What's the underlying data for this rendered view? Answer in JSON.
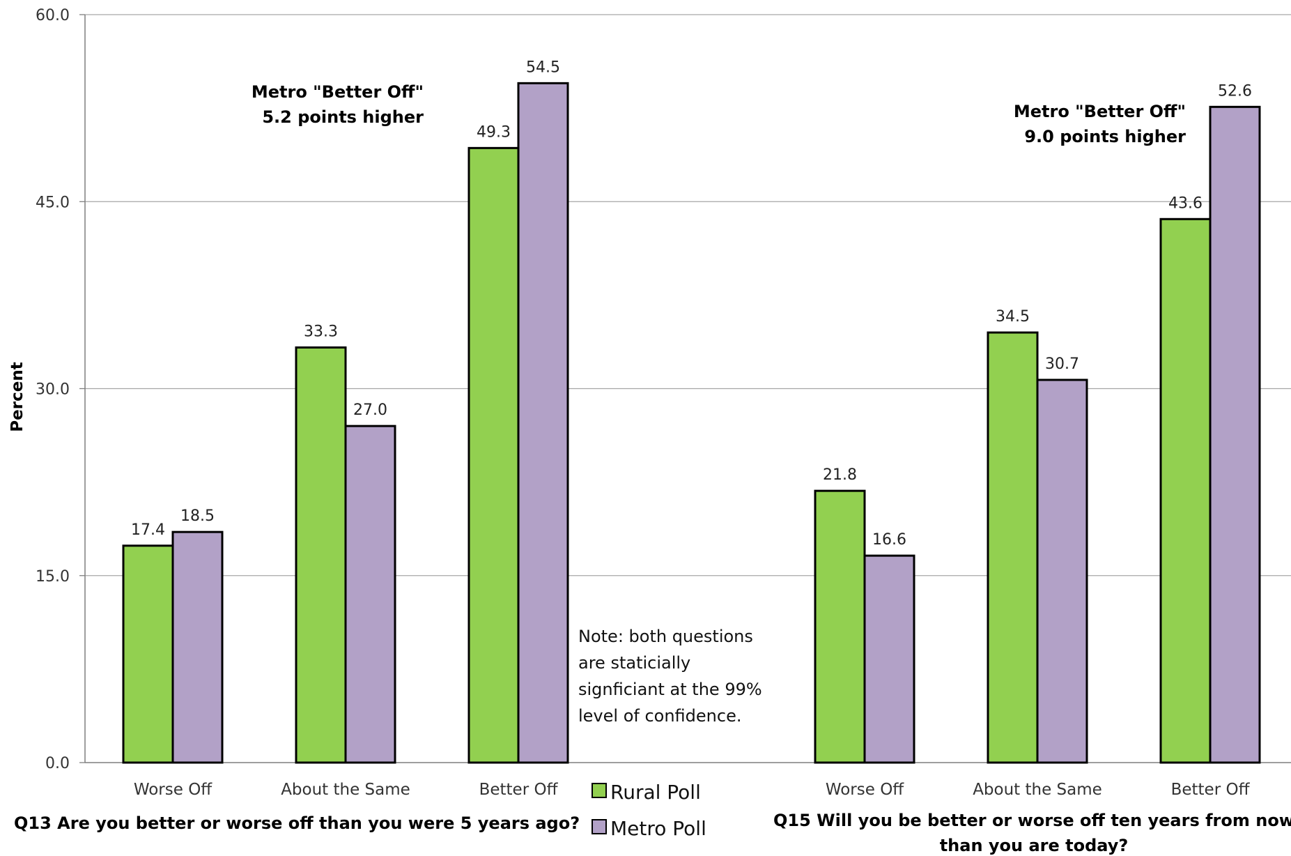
{
  "chart_data": {
    "type": "bar",
    "ylabel": "Percent",
    "ylim": [
      0,
      60
    ],
    "yticks": [
      "0.0",
      "15.0",
      "30.0",
      "45.0",
      "60.0"
    ],
    "grid": true,
    "legend_position": "bottom-center",
    "groups": [
      {
        "title": "Q13 Are you better or worse off than you were 5 years ago?",
        "categories": [
          "Worse Off",
          "About the Same",
          "Better Off"
        ],
        "series": [
          {
            "name": "Rural Poll",
            "values": [
              17.4,
              33.3,
              49.3
            ]
          },
          {
            "name": "Metro Poll",
            "values": [
              18.5,
              27.0,
              54.5
            ]
          }
        ]
      },
      {
        "title_lines": [
          "Q15 Will you be better or worse off ten years from now",
          "than you are today?"
        ],
        "categories": [
          "Worse Off",
          "About the Same",
          "Better Off"
        ],
        "series": [
          {
            "name": "Rural Poll",
            "values": [
              21.8,
              34.5,
              43.6
            ]
          },
          {
            "name": "Metro Poll",
            "values": [
              16.6,
              30.7,
              52.6
            ]
          }
        ]
      }
    ],
    "series_colors": {
      "Rural Poll": "#92d050",
      "Metro Poll": "#b2a1c7"
    },
    "annotations": [
      {
        "lines": [
          "Metro \"Better Off\"",
          "5.2 points higher"
        ]
      },
      {
        "lines": [
          "Metro \"Better Off\"",
          "9.0 points higher"
        ]
      },
      {
        "lines": [
          "Note: both questions",
          "are staticially",
          "signficiant at the 99%",
          "level of confidence."
        ]
      }
    ],
    "legend": [
      "Rural Poll",
      "Metro Poll"
    ]
  }
}
